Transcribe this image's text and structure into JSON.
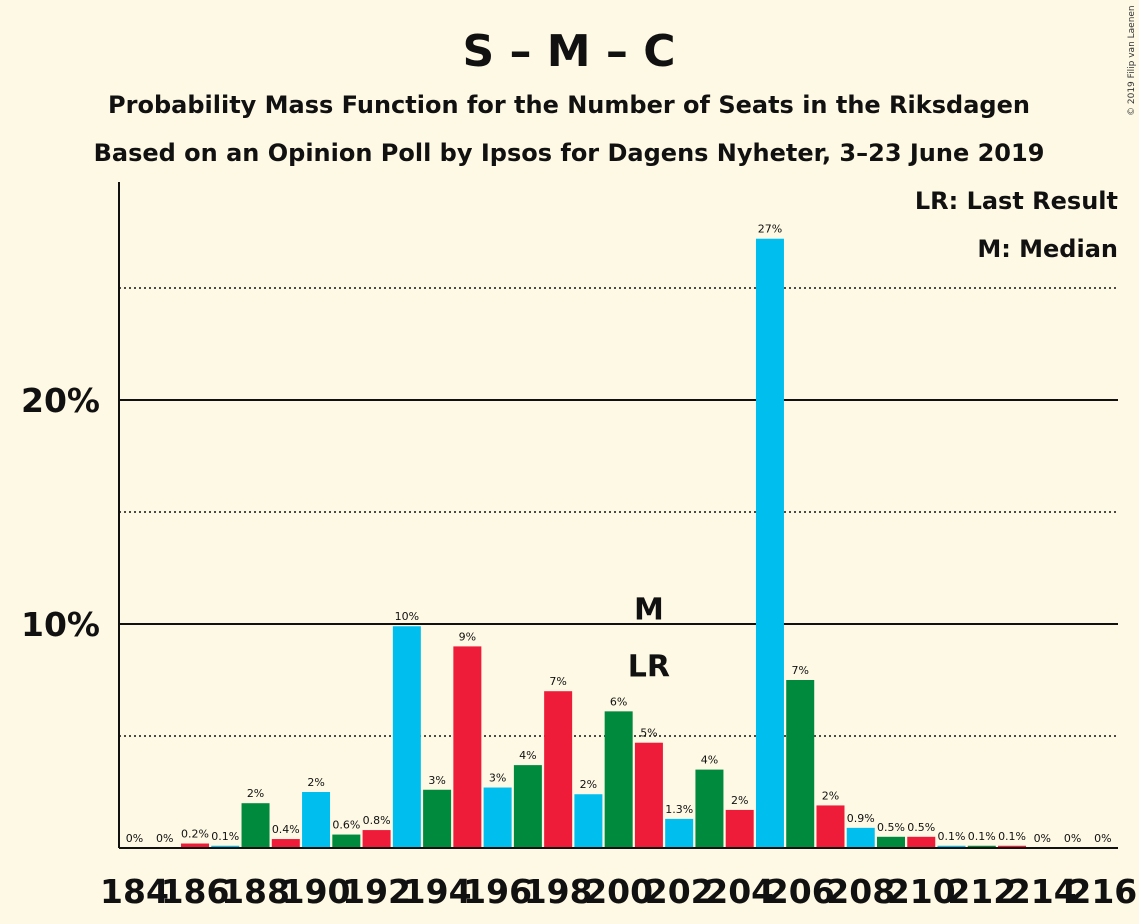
{
  "header": {
    "title": "S – M – C",
    "subtitle": "Probability Mass Function for the Number of Seats in the Riksdagen",
    "subtitle2": "Based on an Opinion Poll by Ipsos for Dagens Nyheter, 3–23 June 2019",
    "copyright": "© 2019 Filip van Laenen"
  },
  "legend": {
    "lr": "LR: Last Result",
    "m": "M: Median"
  },
  "colors": {
    "background": "#fef9e4",
    "cyan": "#00bfee",
    "green": "#008a3e",
    "red": "#ee1c39",
    "text": "#111111"
  },
  "chart_data": {
    "type": "bar",
    "x": [
      184,
      185,
      186,
      187,
      188,
      189,
      190,
      191,
      192,
      193,
      194,
      195,
      196,
      197,
      198,
      199,
      200,
      201,
      202,
      203,
      204,
      205,
      206,
      207,
      208,
      209,
      210,
      211,
      212,
      213,
      214,
      215,
      216
    ],
    "values": [
      0,
      0,
      0.2,
      0.1,
      2.0,
      0.4,
      2.5,
      0.6,
      0.8,
      9.9,
      2.6,
      9.0,
      2.7,
      3.7,
      7.0,
      2.4,
      6.1,
      4.7,
      1.3,
      3.5,
      1.7,
      27.2,
      7.5,
      1.9,
      0.9,
      0.5,
      0.5,
      0.1,
      0.1,
      0.1,
      0,
      0,
      0
    ],
    "labels": [
      "0%",
      "0%",
      "0.2%",
      "0.1%",
      "2%",
      "0.4%",
      "2%",
      "0.6%",
      "0.8%",
      "10%",
      "3%",
      "9%",
      "3%",
      "4%",
      "7%",
      "2%",
      "6%",
      "5%",
      "1.3%",
      "4%",
      "2%",
      "27%",
      "7%",
      "2%",
      "0.9%",
      "0.5%",
      "0.5%",
      "0.1%",
      "0.1%",
      "0.1%",
      "0%",
      "0%",
      "0%"
    ],
    "bar_colors": [
      "cyan",
      "green",
      "red",
      "cyan",
      "green",
      "red",
      "cyan",
      "green",
      "red",
      "cyan",
      "green",
      "red",
      "cyan",
      "green",
      "red",
      "cyan",
      "green",
      "red",
      "cyan",
      "green",
      "red",
      "cyan",
      "green",
      "red",
      "cyan",
      "green",
      "red",
      "cyan",
      "green",
      "red",
      "cyan",
      "green",
      "red"
    ],
    "xtick_labels": [
      "184",
      "186",
      "188",
      "190",
      "192",
      "194",
      "196",
      "198",
      "200",
      "202",
      "204",
      "206",
      "208",
      "210",
      "212",
      "214",
      "216"
    ],
    "ytick_labels": [
      "10%",
      "20%"
    ],
    "yticks": [
      10,
      20
    ],
    "dotted_gridlines": [
      5,
      15,
      25
    ],
    "ylim": [
      0,
      29.7
    ],
    "median_seat": 201,
    "median_label": "M",
    "last_result_seat": 201,
    "last_result_label": "LR"
  }
}
